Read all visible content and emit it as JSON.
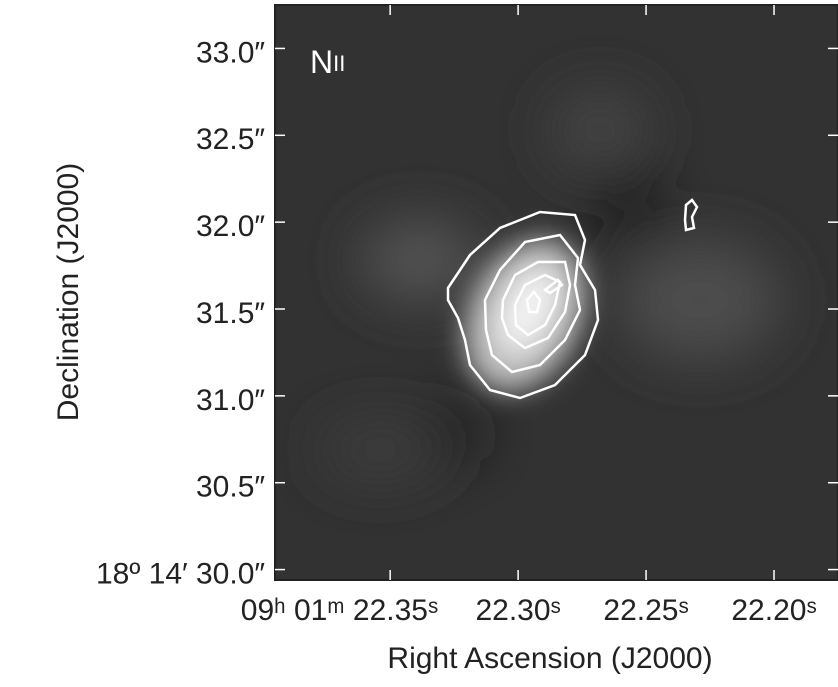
{
  "chart_data": {
    "type": "image",
    "annotation": {
      "text": "N",
      "small": "II"
    },
    "xlabel": "Right Ascension (J2000)",
    "ylabel": "Declination (J2000)",
    "xlim": [
      22.395,
      22.175
    ],
    "ylim": [
      29.94,
      33.25
    ],
    "xticks": [
      {
        "value": 22.35,
        "label": "09ʰ 01ᵐ 22.35ˢ"
      },
      {
        "value": 22.3,
        "label": "22.30ˢ"
      },
      {
        "value": 22.25,
        "label": "22.25ˢ"
      },
      {
        "value": 22.2,
        "label": "22.20ˢ"
      }
    ],
    "yticks": [
      {
        "value": 30.0,
        "label": "18º 14′ 30.0″"
      },
      {
        "value": 30.5,
        "label": "30.5″"
      },
      {
        "value": 31.0,
        "label": "31.0″"
      },
      {
        "value": 31.5,
        "label": "31.5″"
      },
      {
        "value": 32.0,
        "label": "32.0″"
      },
      {
        "value": 32.5,
        "label": "32.5″"
      },
      {
        "value": 33.0,
        "label": "33.0″"
      }
    ]
  }
}
